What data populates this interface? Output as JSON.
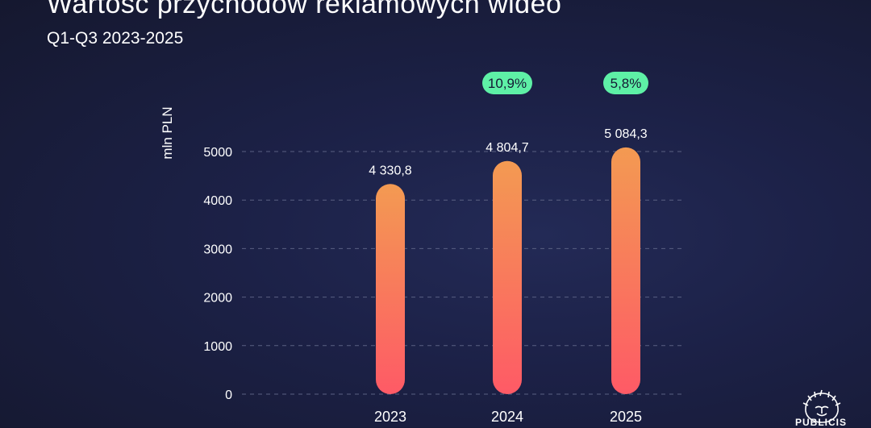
{
  "header": {
    "title": "Wartość przychodów reklamowych wideo",
    "subtitle": "Q1-Q3 2023-2025"
  },
  "chart_data": {
    "type": "bar",
    "title": "Wartość przychodów reklamowych wideo",
    "subtitle": "Q1-Q3 2023-2025",
    "xlabel": "",
    "ylabel": "mln PLN",
    "categories": [
      "2023",
      "2024",
      "2025"
    ],
    "values": [
      4330.8,
      4804.7,
      5084.3
    ],
    "value_labels": [
      "4 330,8",
      "4 804,7",
      "5 084,3"
    ],
    "growth_labels": [
      "",
      "10,9%",
      "5,8%"
    ],
    "yticks": [
      0,
      1000,
      2000,
      3000,
      4000,
      5000
    ],
    "ylim": [
      0,
      5000
    ],
    "grid": true,
    "colors": {
      "bar_top": "#f39a52",
      "bar_bottom": "#fe5a66",
      "growth_badge": "#5ef0a6",
      "growth_text": "#141834",
      "grid": "#5a6082"
    }
  },
  "logo": {
    "text": "PUBLICIS",
    "icon": "lion-head-icon"
  }
}
